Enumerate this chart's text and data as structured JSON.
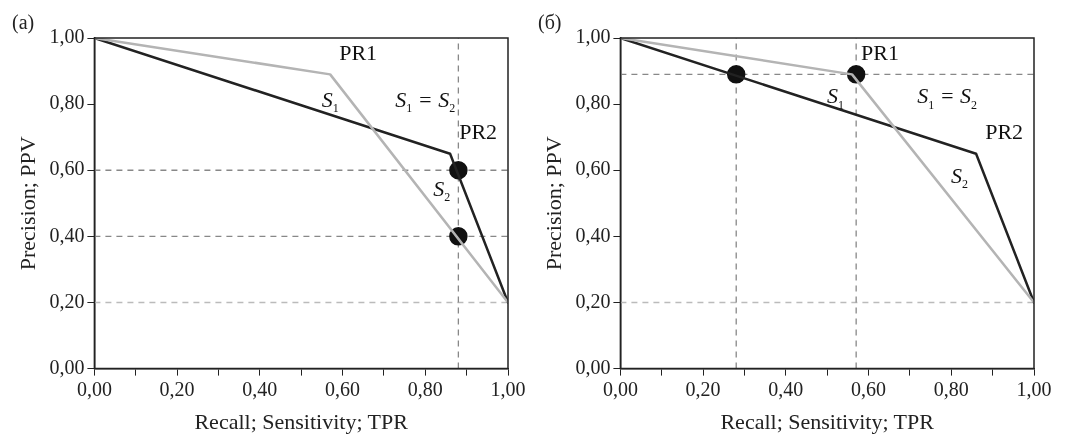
{
  "chart_data": [
    {
      "type": "line",
      "title": "(a)",
      "xlabel": "Recall; Sensitivity; TPR",
      "ylabel": "Precision; PPV",
      "xlim": [
        0,
        1
      ],
      "ylim": [
        0,
        1
      ],
      "xticks": [
        {
          "value": 0,
          "label": "0,00"
        },
        {
          "value": 0.1,
          "label": null
        },
        {
          "value": 0.2,
          "label": "0,20"
        },
        {
          "value": 0.3,
          "label": null
        },
        {
          "value": 0.4,
          "label": "0,40"
        },
        {
          "value": 0.5,
          "label": null
        },
        {
          "value": 0.6,
          "label": "0,60"
        },
        {
          "value": 0.7,
          "label": null
        },
        {
          "value": 0.8,
          "label": "0,80"
        },
        {
          "value": 0.9,
          "label": null
        },
        {
          "value": 1,
          "label": "1,00"
        }
      ],
      "yticks": [
        {
          "value": 0,
          "label": "0,00"
        },
        {
          "value": 0.2,
          "label": "0,20"
        },
        {
          "value": 0.4,
          "label": "0,40"
        },
        {
          "value": 0.6,
          "label": "0,60"
        },
        {
          "value": 0.8,
          "label": "0,80"
        },
        {
          "value": 1,
          "label": "1,00"
        }
      ],
      "grid": false,
      "legend": false,
      "marker": "none",
      "line_style": "solid",
      "series": [
        {
          "name": "PR1",
          "color": "#b4b4b4",
          "x": [
            0,
            0.57,
            1
          ],
          "values": [
            1,
            0.89,
            0.2
          ]
        },
        {
          "name": "PR2",
          "color": "#222222",
          "x": [
            0,
            0.86,
            1
          ],
          "values": [
            1,
            0.65,
            0.2
          ]
        },
        {
          "type": "scatter",
          "color": "#111111",
          "marker": "circle",
          "x": [
            0.88,
            0.88
          ],
          "values": [
            0.6,
            0.4
          ]
        }
      ],
      "ref_lines": [
        {
          "axis": "y",
          "value": 0.6,
          "color": "#888888",
          "line_style": "dashed"
        },
        {
          "axis": "y",
          "value": 0.4,
          "color": "#888888",
          "line_style": "dashed"
        },
        {
          "axis": "y",
          "value": 0.2,
          "color": "#bbbbbb",
          "line_style": "dashed"
        },
        {
          "axis": "x",
          "value": 0.88,
          "color": "#888888",
          "line_style": "dashed"
        }
      ],
      "annotations": [
        "S$_{1}$",
        "S$_{1}$ = S$_{2}$",
        "S$_{2}$"
      ]
    },
    {
      "type": "line",
      "title": "(б)",
      "xlabel": "Recall; Sensitivity; TPR",
      "ylabel": "Precision; PPV",
      "xlim": [
        0,
        1
      ],
      "ylim": [
        0,
        1
      ],
      "xticks": [
        {
          "value": 0,
          "label": "0,00"
        },
        {
          "value": 0.1,
          "label": null
        },
        {
          "value": 0.2,
          "label": "0,20"
        },
        {
          "value": 0.3,
          "label": null
        },
        {
          "value": 0.4,
          "label": "0,40"
        },
        {
          "value": 0.5,
          "label": null
        },
        {
          "value": 0.6,
          "label": "0,60"
        },
        {
          "value": 0.7,
          "label": null
        },
        {
          "value": 0.8,
          "label": "0,80"
        },
        {
          "value": 0.9,
          "label": null
        },
        {
          "value": 1,
          "label": "1,00"
        }
      ],
      "yticks": [
        {
          "value": 0,
          "label": "0,00"
        },
        {
          "value": 0.2,
          "label": "0,20"
        },
        {
          "value": 0.4,
          "label": "0,40"
        },
        {
          "value": 0.6,
          "label": "0,60"
        },
        {
          "value": 0.8,
          "label": "0,80"
        },
        {
          "value": 1,
          "label": "1,00"
        }
      ],
      "grid": false,
      "legend": false,
      "marker": "none",
      "line_style": "solid",
      "series": [
        {
          "name": "PR1",
          "color": "#b4b4b4",
          "x": [
            0,
            0.56,
            1
          ],
          "values": [
            1,
            0.89,
            0.2
          ]
        },
        {
          "name": "PR2",
          "color": "#222222",
          "x": [
            0,
            0.86,
            1
          ],
          "values": [
            1,
            0.65,
            0.2
          ]
        },
        {
          "type": "scatter",
          "color": "#111111",
          "marker": "circle",
          "x": [
            0.28,
            0.57
          ],
          "values": [
            0.89,
            0.89
          ]
        }
      ],
      "ref_lines": [
        {
          "axis": "y",
          "value": 0.89,
          "color": "#888888",
          "line_style": "dashed"
        },
        {
          "axis": "y",
          "value": 0.2,
          "color": "#bbbbbb",
          "line_style": "dashed"
        },
        {
          "axis": "x",
          "value": 0.28,
          "color": "#888888",
          "line_style": "dashed"
        },
        {
          "axis": "x",
          "value": 0.57,
          "color": "#888888",
          "line_style": "dashed"
        }
      ],
      "annotations": [
        "S$_{1}$",
        "S$_{1}$ = S$_{2}$",
        "S$_{2}$"
      ]
    }
  ]
}
